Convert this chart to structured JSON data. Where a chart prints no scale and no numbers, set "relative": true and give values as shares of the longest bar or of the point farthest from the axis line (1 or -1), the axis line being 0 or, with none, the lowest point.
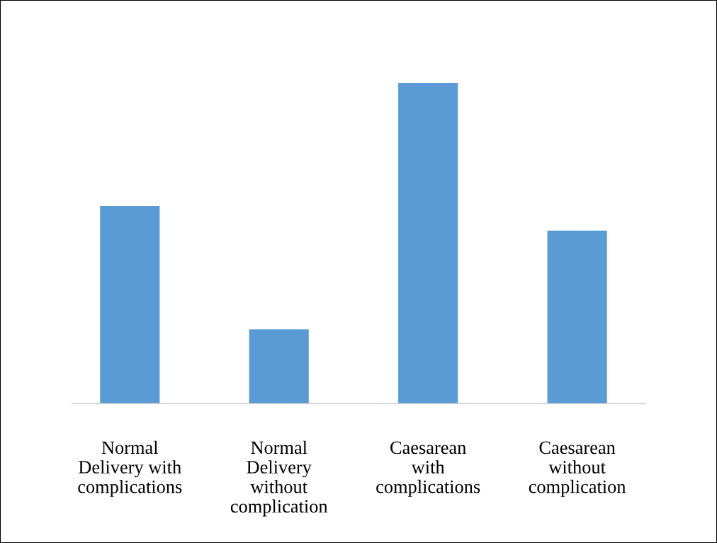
{
  "chart_data": {
    "type": "bar",
    "relative": true,
    "categories": [
      "Normal\nDelivery with\ncomplications",
      "Normal\nDelivery\nwithout\ncomplication",
      "Caesarean\nwith\ncomplications",
      "Caesarean\nwithout\ncomplication"
    ],
    "values": [
      0.616,
      0.231,
      1,
      0.539
    ],
    "color": "#5b9bd5",
    "grid": false,
    "legend": false
  }
}
